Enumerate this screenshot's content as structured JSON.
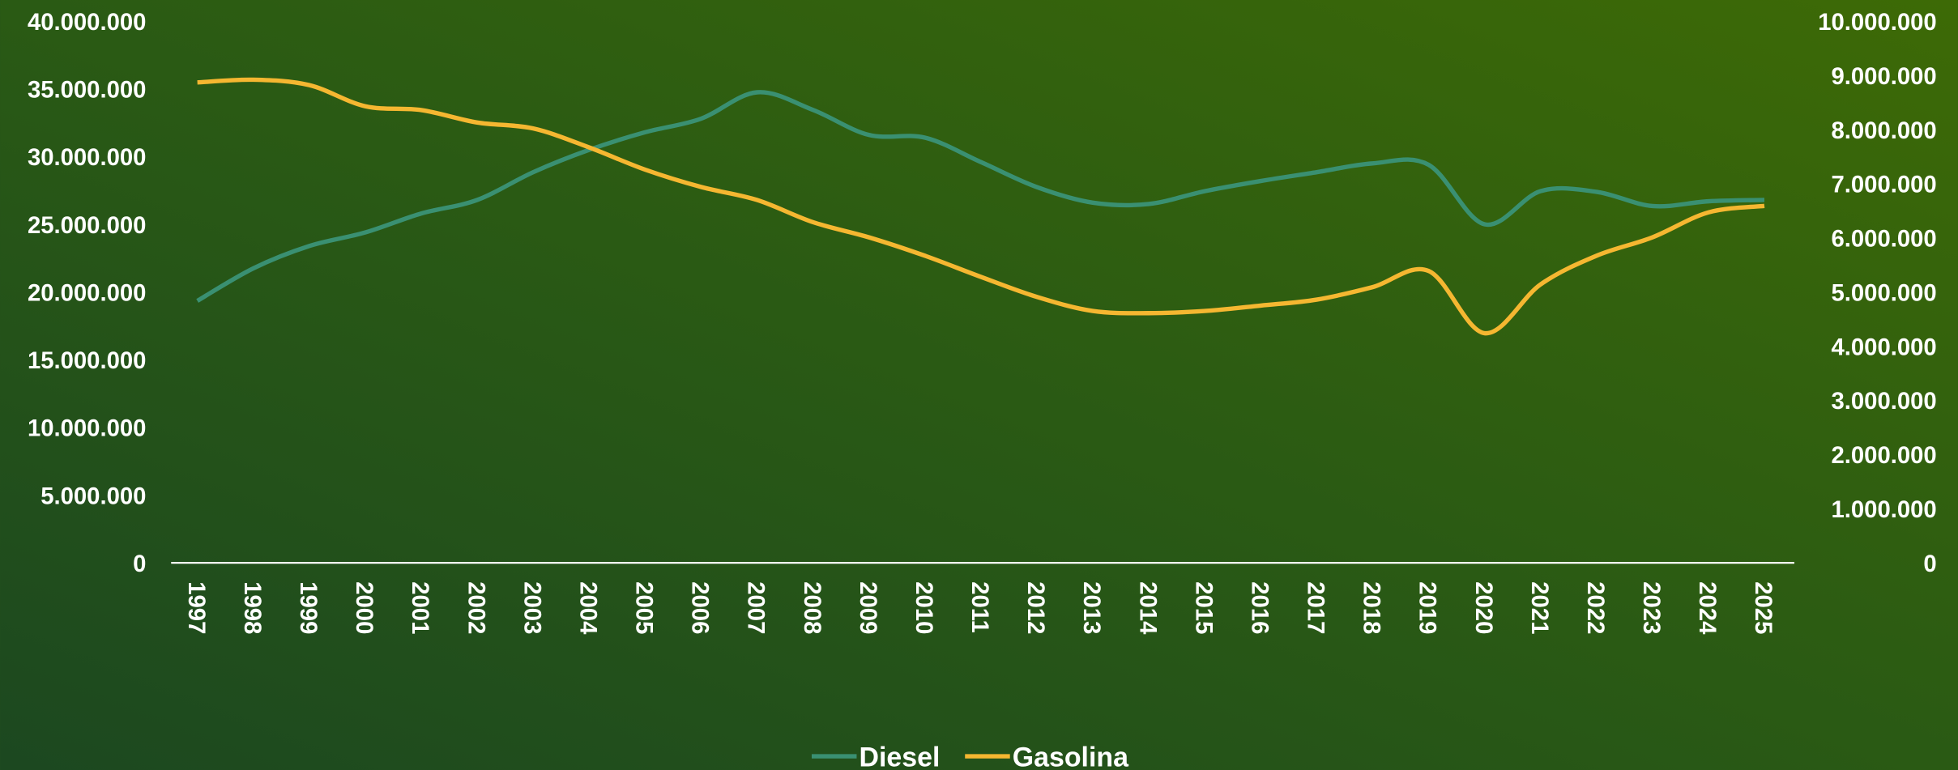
{
  "chart_data": {
    "type": "line",
    "x": [
      "1997",
      "1998",
      "1999",
      "2000",
      "2001",
      "2002",
      "2003",
      "2004",
      "2005",
      "2006",
      "2007",
      "2008",
      "2009",
      "2010",
      "2011",
      "2012",
      "2013",
      "2014",
      "2015",
      "2016",
      "2017",
      "2018",
      "2019",
      "2020",
      "2021",
      "2022",
      "2023",
      "2024",
      "2025"
    ],
    "series": [
      {
        "name": "Diesel",
        "color": "#3a9072",
        "axis": "y",
        "values": [
          19350000,
          21750000,
          23400000,
          24400000,
          25800000,
          26800000,
          28850000,
          30500000,
          31800000,
          32800000,
          34750000,
          33450000,
          31600000,
          31400000,
          29600000,
          27750000,
          26600000,
          26500000,
          27450000,
          28200000,
          28850000,
          29500000,
          29400000,
          25000000,
          27450000,
          27400000,
          26350000,
          26700000,
          26800000
        ]
      },
      {
        "name": "Gasolina",
        "color": "#f5b731",
        "axis": "y2",
        "values": [
          8870000,
          8920000,
          8820000,
          8430000,
          8360000,
          8130000,
          8020000,
          7670000,
          7260000,
          6940000,
          6700000,
          6290000,
          6010000,
          5670000,
          5280000,
          4910000,
          4650000,
          4610000,
          4650000,
          4750000,
          4860000,
          5090000,
          5390000,
          4240000,
          5140000,
          5670000,
          6010000,
          6470000,
          6590000
        ]
      }
    ],
    "ylim": [
      0,
      40000000
    ],
    "yticks": [
      0,
      {
        "value": 5000000,
        "label": "5.000.000"
      },
      {
        "value": 10000000,
        "label": "10.000.000"
      },
      {
        "value": 15000000,
        "label": "15.000.000"
      },
      {
        "value": 20000000,
        "label": "20.000.000"
      },
      {
        "value": 25000000,
        "label": "25.000.000"
      },
      {
        "value": 30000000,
        "label": "30.000.000"
      },
      {
        "value": 35000000,
        "label": "35.000.000"
      },
      {
        "value": 40000000,
        "label": "40.000.000"
      }
    ],
    "y2lim": [
      0,
      10000000
    ],
    "y2ticks": [
      0,
      {
        "value": 1000000,
        "label": "1.000.000"
      },
      {
        "value": 2000000,
        "label": "2.000.000"
      },
      {
        "value": 3000000,
        "label": "3.000.000"
      },
      {
        "value": 4000000,
        "label": "4.000.000"
      },
      {
        "value": 5000000,
        "label": "5.000.000"
      },
      {
        "value": 6000000,
        "label": "6.000.000"
      },
      {
        "value": 7000000,
        "label": "7.000.000"
      },
      {
        "value": 8000000,
        "label": "8.000.000"
      },
      {
        "value": 9000000,
        "label": "9.000.000"
      },
      {
        "value": 10000000,
        "label": "10.000.000"
      }
    ],
    "legend": "bottom"
  }
}
